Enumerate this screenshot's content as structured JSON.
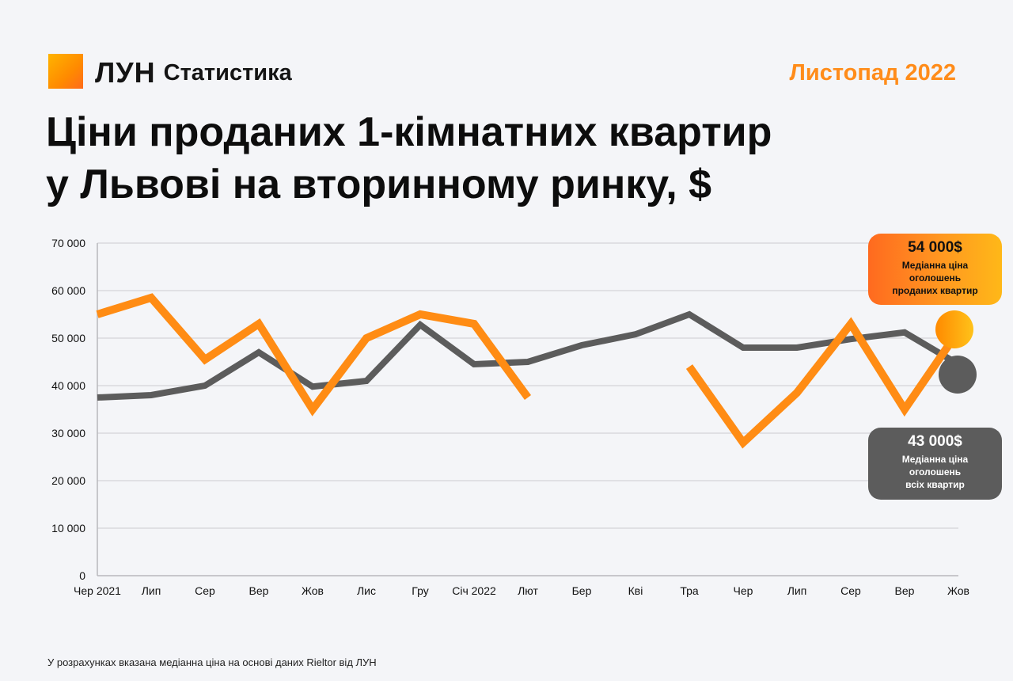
{
  "header": {
    "brand_name": "ЛУН",
    "brand_section": "Статистика",
    "period": "Листопад 2022"
  },
  "title_line1": "Ціни проданих 1-кімнатних квартир",
  "title_line2": "у Львові на вторинному ринку, $",
  "colors": {
    "sold": "#ff8c14",
    "all": "#5c5c5c",
    "accent": "#ff8c1a",
    "grid": "#d9d9dd"
  },
  "callouts": {
    "sold": {
      "value": "54 000$",
      "desc": [
        "Медіанна ціна",
        "оголошень",
        "проданих квартир"
      ]
    },
    "all": {
      "value": "43 000$",
      "desc": [
        "Медіанна ціна",
        "оголошень",
        "всіх квартир"
      ]
    }
  },
  "footnote": "У розрахунках вказана медіанна ціна на основі даних Rieltor від ЛУН",
  "chart_data": {
    "type": "line",
    "categories": [
      "Чер 2021",
      "Лип",
      "Сер",
      "Вер",
      "Жов",
      "Лис",
      "Гру",
      "Січ 2022",
      "Лют",
      "Бер",
      "Кві",
      "Тра",
      "Чер",
      "Лип",
      "Сер",
      "Вер",
      "Жов"
    ],
    "y_ticks": [
      "0",
      "10 000",
      "20 000",
      "30 000",
      "40 000",
      "50 000",
      "60 000",
      "70 000"
    ],
    "ylim": [
      0,
      70000
    ],
    "grid": true,
    "series": [
      {
        "key": "sold",
        "values": [
          55000,
          58500,
          45500,
          53000,
          35000,
          50000,
          55000,
          53000,
          37500,
          null,
          null,
          44000,
          28000,
          38500,
          53000,
          35000,
          51500
        ]
      },
      {
        "key": "all",
        "values": [
          37500,
          38000,
          40000,
          47000,
          39800,
          41000,
          52800,
          44500,
          45000,
          48500,
          50800,
          55000,
          48000,
          48000,
          49800,
          51200,
          44500
        ]
      }
    ]
  }
}
